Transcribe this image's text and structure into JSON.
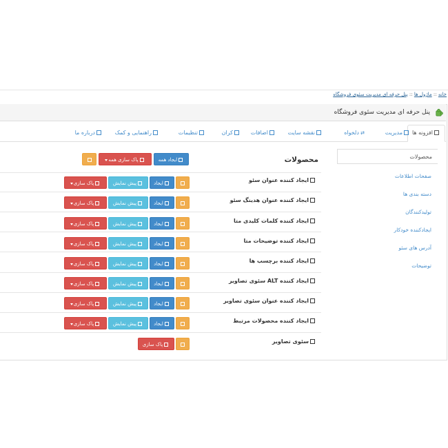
{
  "breadcrumb": {
    "home": "خانه",
    "sep1": "::",
    "modules": "ماژول ها",
    "sep2": "::",
    "current": "پنل حرفه ای مدیریت سئوی فروشگاه"
  },
  "panel": {
    "title": "پنل حرفه ای مدیریت سئوی فروشگاه"
  },
  "tabs": [
    {
      "label": "افزونه ها",
      "active": true
    },
    {
      "label": "مدیریت",
      "active": false
    },
    {
      "label": "دلخواه",
      "active": false,
      "icon": "shuffle-icon"
    },
    {
      "label": "نقشه سایت",
      "active": false
    },
    {
      "label": "اضافات",
      "active": false
    },
    {
      "label": "کران",
      "active": false
    },
    {
      "label": "تنظیمات",
      "active": false
    },
    {
      "label": "راهنمایی و کمک",
      "active": false
    },
    {
      "label": "درباره ما",
      "active": false
    }
  ],
  "sidebar": {
    "items": [
      {
        "label": "محصولات",
        "active": true
      },
      {
        "label": "صفحات اطلاعات"
      },
      {
        "label": "دسته بندی ها"
      },
      {
        "label": "تولیدکنندگان"
      },
      {
        "label": "ایجادکننده خودکار"
      },
      {
        "label": "آدرس های سئو"
      },
      {
        "label": "توضیحات"
      }
    ]
  },
  "main": {
    "section_title": "محصولات",
    "header_buttons": {
      "create_all": "ایجاد همه",
      "clear_all": "پاک سازی همه"
    },
    "buttons": {
      "create": "ایجاد",
      "preview": "پیش نمایش",
      "clear": "پاک سازی"
    },
    "rows": [
      {
        "label": "ایجاد کننده عنوان سئو"
      },
      {
        "label": "ایجاد کننده عنوان هدینگ سئو"
      },
      {
        "label": "ایجاد کننده کلمات کلیدی متا"
      },
      {
        "label": "ایجاد کننده توضیحات متا"
      },
      {
        "label": "ایجاد کننده برچسب ها"
      },
      {
        "label": "ایجاد کننده ALT سئوی تصاویر"
      },
      {
        "label": "ایجاد کننده عنوان سئوی تصاویر"
      },
      {
        "label": "ایجاد کننده محصولات مرتبط"
      },
      {
        "label": "سئوی تصاویر"
      }
    ]
  },
  "colors": {
    "warning": "#f0ad4e",
    "primary": "#428bca",
    "info": "#5bc0de",
    "danger": "#d9534f"
  }
}
